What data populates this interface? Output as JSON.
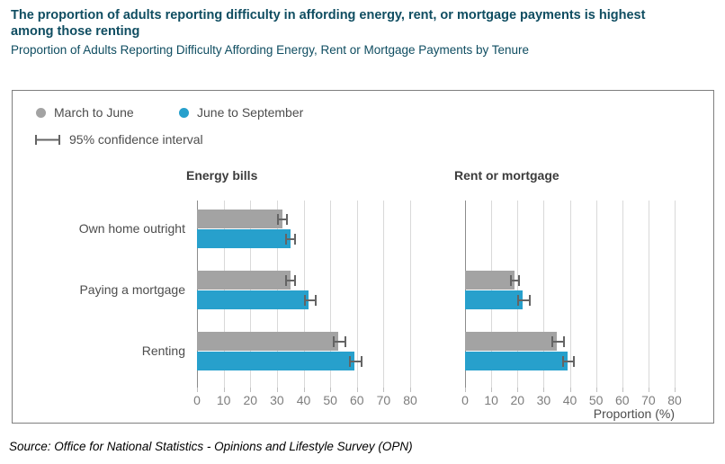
{
  "page": {
    "title": "The proportion of adults reporting difficulty in affording energy, rent, or mortgage payments is highest among those renting",
    "subtitle": "Proportion of Adults Reporting Difficulty Affording Energy, Rent or Mortgage Payments by Tenure",
    "source": "Source: Office for National Statistics - Opinions and Lifestyle Survey (OPN)"
  },
  "legend": {
    "series": [
      {
        "label": "March to June",
        "color": "#a3a3a3"
      },
      {
        "label": "June to September",
        "color": "#27a0cc"
      }
    ],
    "ci_label": "95% confidence interval"
  },
  "colors": {
    "title_teal": "#0f4d61",
    "bar_gray": "#a3a3a3",
    "bar_blue": "#27a0cc",
    "error_bar": "#646464",
    "gridline": "#d9d9d9",
    "axis_line": "#8c8c8c",
    "tick_text": "#7d7d7d",
    "label_text": "#4d4d4d"
  },
  "chart_data": {
    "type": "bar",
    "orientation": "horizontal",
    "grid": true,
    "legend_position": "top-left",
    "categories": [
      "Own home outright",
      "Paying a mortgage",
      "Renting"
    ],
    "xlabel": "Proportion (%)",
    "xlim": [
      0,
      80
    ],
    "xticks": [
      0,
      10,
      20,
      30,
      40,
      50,
      60,
      70,
      80
    ],
    "panels": [
      {
        "title": "Energy bills",
        "series": [
          {
            "name": "March to June",
            "color": "#a3a3a3",
            "values": [
              32,
              35,
              53
            ],
            "ci": [
              [
                30,
                34
              ],
              [
                33,
                37
              ],
              [
                51,
                56
              ]
            ]
          },
          {
            "name": "June to September",
            "color": "#27a0cc",
            "values": [
              35,
              42,
              59
            ],
            "ci": [
              [
                33,
                37
              ],
              [
                40,
                45
              ],
              [
                57,
                62
              ]
            ]
          }
        ]
      },
      {
        "title": "Rent or mortgage",
        "series": [
          {
            "name": "March to June",
            "color": "#a3a3a3",
            "values": [
              null,
              19,
              35
            ],
            "ci": [
              null,
              [
                17,
                21
              ],
              [
                33,
                38
              ]
            ]
          },
          {
            "name": "June to September",
            "color": "#27a0cc",
            "values": [
              null,
              22,
              39
            ],
            "ci": [
              null,
              [
                20,
                25
              ],
              [
                37,
                42
              ]
            ]
          }
        ]
      }
    ]
  }
}
